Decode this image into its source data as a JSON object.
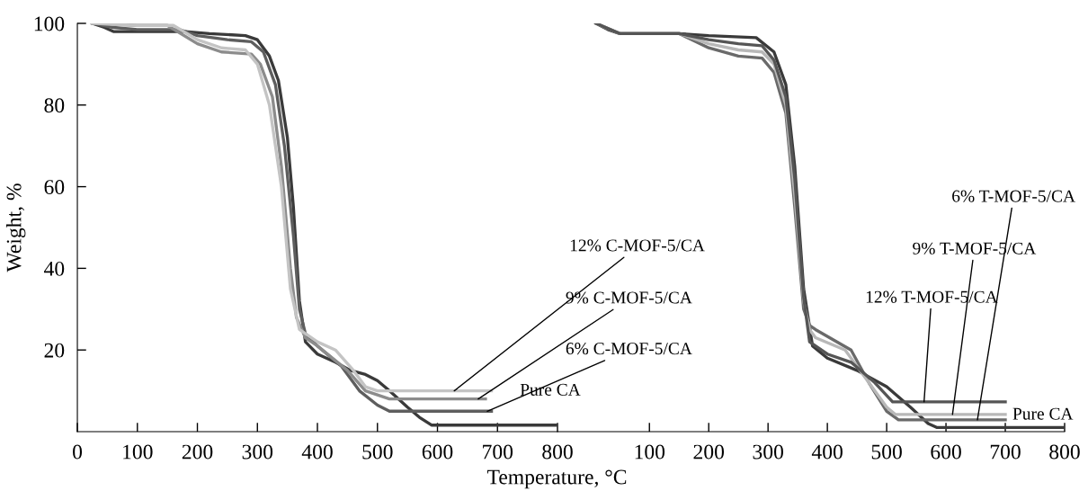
{
  "chart_data": [
    {
      "type": "line",
      "ylabel": "Weight, %",
      "xlabel": "Temperature, °C",
      "xlim": [
        0,
        800
      ],
      "ylim": [
        0,
        100
      ],
      "xticks": [
        0,
        100,
        200,
        300,
        400,
        500,
        600,
        700,
        800
      ],
      "yticks": [
        20,
        40,
        60,
        80,
        100
      ],
      "grid": false,
      "legend": false,
      "line_style": "solid",
      "marker": "none",
      "series": [
        {
          "color": "#3a3a3a",
          "x": [
            25,
            45,
            60,
            100,
            180,
            220,
            280,
            300,
            320,
            335,
            350,
            360,
            370,
            380,
            400,
            430,
            455,
            480,
            500,
            520,
            550,
            570,
            590,
            600,
            700,
            800
          ],
          "values": [
            100,
            99,
            98,
            98,
            98,
            97.5,
            97,
            96,
            92,
            86,
            72,
            55,
            32,
            22,
            19,
            17,
            15,
            14,
            12.5,
            10,
            6,
            3.5,
            1.6,
            1.6,
            1.6,
            1.6
          ]
        },
        {
          "color": "#5e5e5e",
          "x": [
            25,
            60,
            100,
            170,
            200,
            250,
            290,
            310,
            330,
            345,
            360,
            370,
            380,
            400,
            440,
            470,
            500,
            520,
            600,
            690
          ],
          "values": [
            100,
            99,
            98.5,
            98.5,
            97,
            96,
            95.5,
            93,
            85,
            70,
            48,
            30,
            24,
            21,
            16,
            10,
            6.5,
            5,
            5,
            5
          ]
        },
        {
          "color": "#8c8c8c",
          "x": [
            25,
            100,
            150,
            200,
            240,
            290,
            305,
            325,
            340,
            355,
            365,
            380,
            400,
            450,
            480,
            500,
            520,
            600,
            680
          ],
          "values": [
            100,
            99.5,
            99.5,
            95,
            93,
            92.5,
            90,
            82,
            65,
            40,
            28,
            23,
            21,
            15,
            10,
            9,
            8,
            8,
            8
          ]
        },
        {
          "color": "#c4c4c4",
          "x": [
            25,
            100,
            160,
            200,
            240,
            280,
            300,
            320,
            340,
            355,
            370,
            400,
            430,
            460,
            480,
            500,
            600,
            690
          ],
          "values": [
            100,
            99.5,
            99.5,
            96,
            94,
            93.5,
            90,
            80,
            60,
            35,
            25,
            22,
            20,
            15,
            11,
            10,
            10,
            10
          ]
        }
      ],
      "annotations": [
        {
          "text": "12% C-MOF-5/CA",
          "x": 628,
          "y": 10
        },
        {
          "text": "9% C-MOF-5/CA",
          "x": 668,
          "y": 8
        },
        {
          "text": "6% C-MOF-5/CA",
          "x": 683,
          "y": 5
        },
        "Pure CA"
      ]
    },
    {
      "type": "line",
      "xlim": [
        -55,
        800
      ],
      "ylim": [
        0,
        100
      ],
      "xticks": [
        100,
        200,
        300,
        400,
        500,
        600,
        700,
        800
      ],
      "tick_labels": "x",
      "grid": false,
      "legend": false,
      "line_style": "solid",
      "marker": "none",
      "series": [
        {
          "color": "#3a3a3a",
          "x": [
            10,
            30,
            50,
            150,
            200,
            280,
            310,
            330,
            345,
            360,
            375,
            400,
            450,
            500,
            540,
            570,
            585,
            700,
            800
          ],
          "values": [
            100,
            98.5,
            97.5,
            97.5,
            97,
            96.5,
            93,
            85,
            65,
            35,
            21,
            18,
            15,
            11,
            6,
            2,
            1,
            1,
            1
          ]
        },
        {
          "color": "#6a6a6a",
          "x": [
            10,
            50,
            150,
            200,
            250,
            290,
            310,
            330,
            345,
            360,
            370,
            380,
            440,
            470,
            500,
            520,
            600,
            700
          ],
          "values": [
            100,
            97.5,
            97.5,
            94,
            92,
            91.5,
            88,
            78,
            55,
            30,
            26,
            25,
            20,
            12,
            5,
            2.9,
            2.9,
            2.9
          ]
        },
        {
          "color": "#b8b8b8",
          "x": [
            10,
            50,
            150,
            200,
            250,
            290,
            310,
            330,
            345,
            360,
            370,
            380,
            430,
            470,
            500,
            515,
            600,
            700
          ],
          "values": [
            100,
            97.5,
            97.5,
            95,
            93.5,
            93,
            90,
            80,
            58,
            32,
            25,
            23,
            20,
            12,
            6,
            4.2,
            4.2,
            4.2
          ]
        },
        {
          "color": "#555555",
          "x": [
            10,
            50,
            150,
            200,
            250,
            290,
            310,
            330,
            345,
            360,
            370,
            400,
            440,
            480,
            510,
            600,
            700
          ],
          "values": [
            100,
            97.5,
            97.5,
            96,
            95,
            94.5,
            91,
            82,
            62,
            33,
            22,
            19,
            17,
            12,
            7.3,
            7.3,
            7.3
          ]
        }
      ],
      "annotations": [
        {
          "text": "6% T-MOF-5/CA",
          "x": 653,
          "y": 2.9
        },
        {
          "text": "9% T-MOF-5/CA",
          "x": 611,
          "y": 4.2
        },
        {
          "text": "12% T-MOF-5/CA",
          "x": 563,
          "y": 7.3
        },
        "Pure CA"
      ]
    }
  ]
}
